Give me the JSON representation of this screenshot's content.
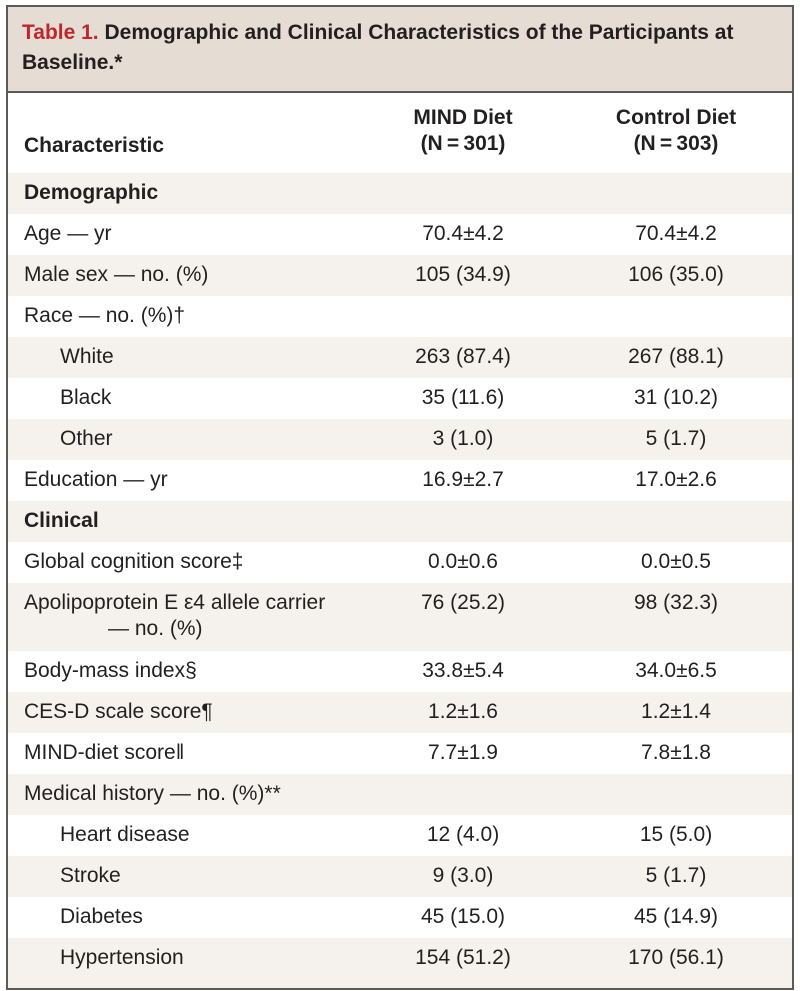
{
  "caption": {
    "label": "Table 1.",
    "title": " Demographic and Clinical Characteristics of the Participants at Baseline.*"
  },
  "header": {
    "characteristic": "Characteristic",
    "mind_name": "MIND Diet",
    "mind_n": "(N = 301)",
    "control_name": "Control Diet",
    "control_n": "(N = 303)"
  },
  "rows": [
    {
      "label": "Demographic",
      "mind": "",
      "control": ""
    },
    {
      "label": "Age — yr",
      "mind": "70.4±4.2",
      "control": "70.4±4.2"
    },
    {
      "label": "Male sex — no. (%)",
      "mind": "105 (34.9)",
      "control": "106 (35.0)"
    },
    {
      "label": "Race — no. (%)†",
      "mind": "",
      "control": ""
    },
    {
      "label": "White",
      "mind": "263 (87.4)",
      "control": "267 (88.1)"
    },
    {
      "label": "Black",
      "mind": "35 (11.6)",
      "control": "31 (10.2)"
    },
    {
      "label": "Other",
      "mind": "3 (1.0)",
      "control": "5 (1.7)"
    },
    {
      "label": "Education — yr",
      "mind": "16.9±2.7",
      "control": "17.0±2.6"
    },
    {
      "label": "Clinical",
      "mind": "",
      "control": ""
    },
    {
      "label": "Global cognition score‡",
      "mind": "0.0±0.6",
      "control": "0.0±0.5"
    },
    {
      "label": "Apolipoprotein E ε4 allele carrier",
      "label_cont": "— no. (%)",
      "mind": "76 (25.2)",
      "control": "98 (32.3)"
    },
    {
      "label": "Body-mass index§",
      "mind": "33.8±5.4",
      "control": "34.0±6.5"
    },
    {
      "label": "CES-D scale score¶",
      "mind": "1.2±1.6",
      "control": "1.2±1.4"
    },
    {
      "label": "MIND-diet score‖",
      "mind": "7.7±1.9",
      "control": "7.8±1.8"
    },
    {
      "label": "Medical history — no. (%)**",
      "mind": "",
      "control": ""
    },
    {
      "label": "Heart disease",
      "mind": "12 (4.0)",
      "control": "15 (5.0)"
    },
    {
      "label": "Stroke",
      "mind": "9 (3.0)",
      "control": "5 (1.7)"
    },
    {
      "label": "Diabetes",
      "mind": "45 (15.0)",
      "control": "45 (14.9)"
    },
    {
      "label": "Hypertension",
      "mind": "154 (51.2)",
      "control": "170 (56.1)"
    }
  ]
}
